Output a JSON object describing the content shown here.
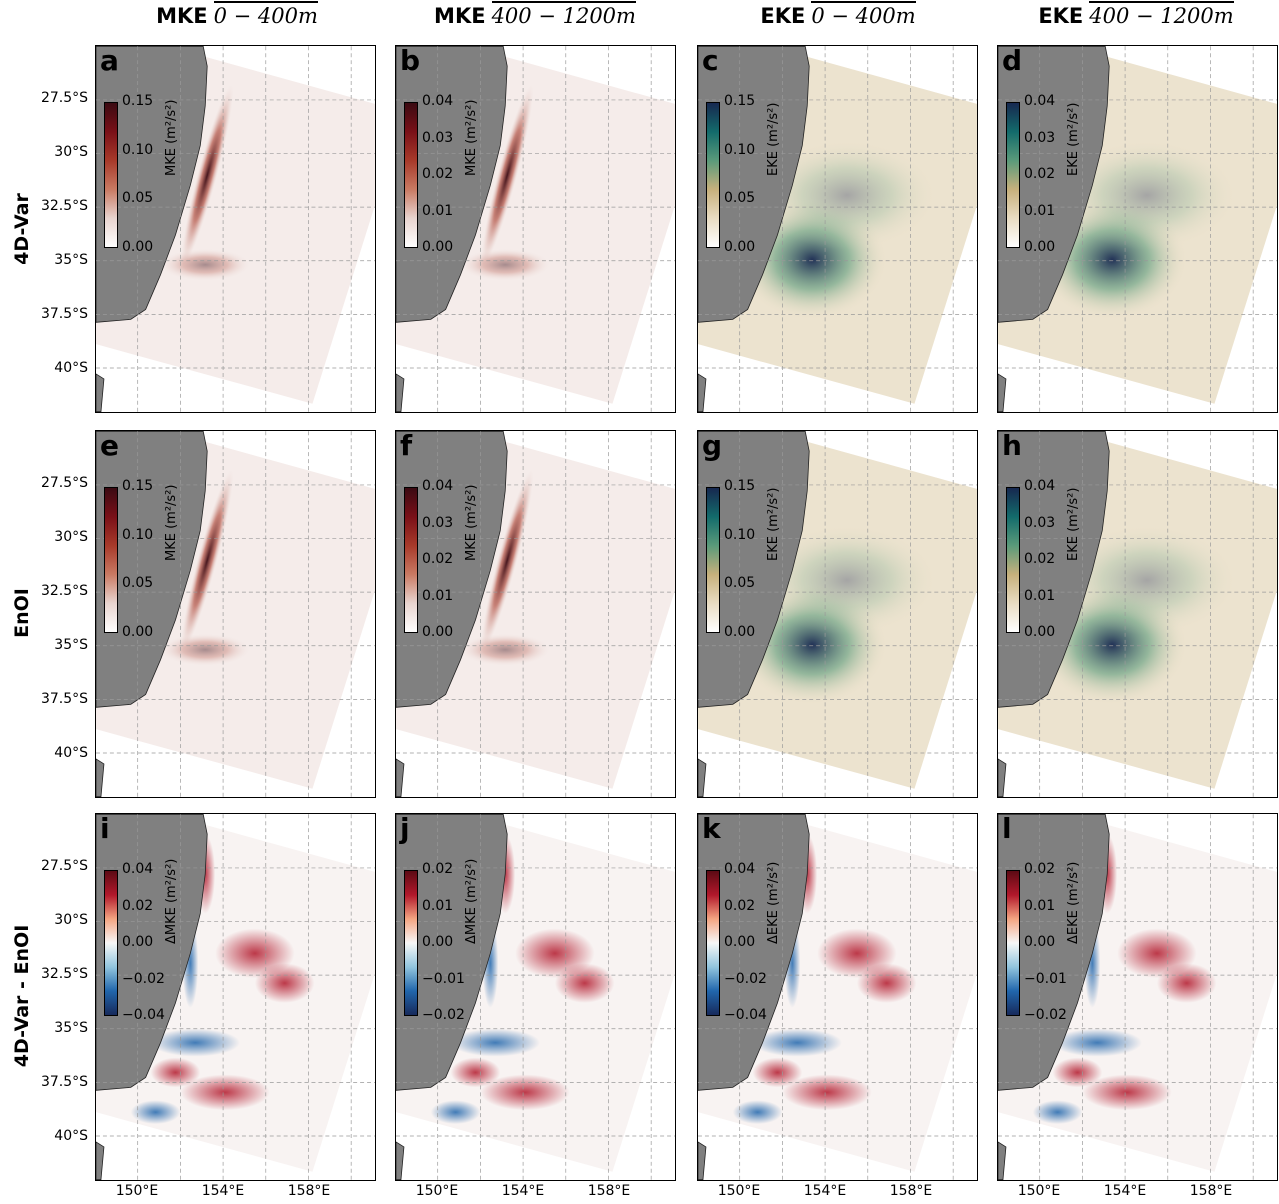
{
  "columns": [
    {
      "bold": "MKE",
      "over": "0 − 400m"
    },
    {
      "bold": "MKE",
      "over": "400 − 1200m"
    },
    {
      "bold": "EKE",
      "over": "0 − 400m"
    },
    {
      "bold": "EKE",
      "over": "400 − 1200m"
    }
  ],
  "rows": [
    "4D-Var",
    "EnOI",
    "4D-Var - EnOI"
  ],
  "lat_labels": [
    "27.5°S",
    "30°S",
    "32.5°S",
    "35°S",
    "37.5°S",
    "40°S"
  ],
  "lon_labels": [
    "150°E",
    "154°E",
    "158°E"
  ],
  "colors": {
    "land": "#808080",
    "mke_scale": [
      "#ffffff",
      "#e8d4cf",
      "#c97a63",
      "#a83a2a",
      "#7a1018",
      "#3b0a12"
    ],
    "eke_scale": [
      "#ffffff",
      "#e9dcc2",
      "#c6b07c",
      "#5a9a7a",
      "#136b6b",
      "#172850"
    ],
    "div_scale": [
      "#172a5c",
      "#2166ac",
      "#92c5de",
      "#f7f7f7",
      "#f4a582",
      "#b2182b",
      "#5c0a14"
    ]
  },
  "panels": [
    {
      "label": "a",
      "type": "mke",
      "cbar_label": "MKE (m²/s²)",
      "ticks": [
        "0.15",
        "0.10",
        "0.05",
        "0.00"
      ]
    },
    {
      "label": "b",
      "type": "mke",
      "cbar_label": "MKE (m²/s²)",
      "ticks": [
        "0.04",
        "0.03",
        "0.02",
        "0.01",
        "0.00"
      ]
    },
    {
      "label": "c",
      "type": "eke",
      "cbar_label": "EKE (m²/s²)",
      "ticks": [
        "0.15",
        "0.10",
        "0.05",
        "0.00"
      ]
    },
    {
      "label": "d",
      "type": "eke",
      "cbar_label": "EKE (m²/s²)",
      "ticks": [
        "0.04",
        "0.03",
        "0.02",
        "0.01",
        "0.00"
      ]
    },
    {
      "label": "e",
      "type": "mke",
      "cbar_label": "MKE (m²/s²)",
      "ticks": [
        "0.15",
        "0.10",
        "0.05",
        "0.00"
      ]
    },
    {
      "label": "f",
      "type": "mke",
      "cbar_label": "MKE (m²/s²)",
      "ticks": [
        "0.04",
        "0.03",
        "0.02",
        "0.01",
        "0.00"
      ]
    },
    {
      "label": "g",
      "type": "eke",
      "cbar_label": "EKE (m²/s²)",
      "ticks": [
        "0.15",
        "0.10",
        "0.05",
        "0.00"
      ]
    },
    {
      "label": "h",
      "type": "eke",
      "cbar_label": "EKE (m²/s²)",
      "ticks": [
        "0.04",
        "0.03",
        "0.02",
        "0.01",
        "0.00"
      ]
    },
    {
      "label": "i",
      "type": "diff",
      "cbar_label": "ΔMKE (m²/s²)",
      "ticks": [
        "0.04",
        "0.02",
        "0.00",
        "−0.02",
        "−0.04"
      ]
    },
    {
      "label": "j",
      "type": "diff",
      "cbar_label": "ΔMKE (m²/s²)",
      "ticks": [
        "0.02",
        "0.01",
        "0.00",
        "−0.01",
        "−0.02"
      ]
    },
    {
      "label": "k",
      "type": "diff",
      "cbar_label": "ΔEKE (m²/s²)",
      "ticks": [
        "0.04",
        "0.02",
        "0.00",
        "−0.02",
        "−0.04"
      ]
    },
    {
      "label": "l",
      "type": "diff",
      "cbar_label": "ΔEKE (m²/s²)",
      "ticks": [
        "0.02",
        "0.01",
        "0.00",
        "−0.01",
        "−0.02"
      ]
    }
  ]
}
